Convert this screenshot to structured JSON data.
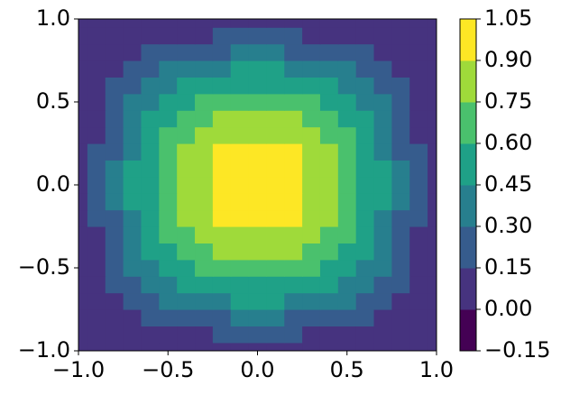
{
  "chart_data": {
    "type": "contourf",
    "x": [
      -1,
      -0.9,
      -0.8,
      -0.7,
      -0.6,
      -0.5,
      -0.4,
      -0.3,
      -0.2,
      -0.1,
      0,
      0.1,
      0.2,
      0.3,
      0.4,
      0.5,
      0.6,
      0.7,
      0.8,
      0.9,
      1
    ],
    "y": [
      -1,
      -0.9,
      -0.8,
      -0.7,
      -0.6,
      -0.5,
      -0.4,
      -0.3,
      -0.2,
      -0.1,
      0,
      0.1,
      0.2,
      0.3,
      0.4,
      0.5,
      0.6,
      0.7,
      0.8,
      0.9,
      1
    ],
    "z": [
      [
        0,
        0,
        0,
        0,
        0,
        0,
        0,
        0,
        0,
        0,
        0,
        0,
        0,
        0,
        0,
        0,
        0,
        0,
        0,
        0,
        0
      ],
      [
        0,
        0.02,
        0.05,
        0.07,
        0.09,
        0.11,
        0.13,
        0.14,
        0.15,
        0.15,
        0.16,
        0.15,
        0.15,
        0.14,
        0.13,
        0.11,
        0.09,
        0.07,
        0.05,
        0.02,
        0
      ],
      [
        0,
        0.05,
        0.1,
        0.14,
        0.18,
        0.22,
        0.25,
        0.28,
        0.29,
        0.31,
        0.31,
        0.31,
        0.29,
        0.28,
        0.25,
        0.22,
        0.18,
        0.14,
        0.1,
        0.05,
        0
      ],
      [
        0,
        0.07,
        0.14,
        0.21,
        0.27,
        0.32,
        0.37,
        0.4,
        0.43,
        0.45,
        0.45,
        0.45,
        0.43,
        0.4,
        0.37,
        0.32,
        0.27,
        0.21,
        0.14,
        0.07,
        0
      ],
      [
        0,
        0.09,
        0.18,
        0.27,
        0.35,
        0.42,
        0.48,
        0.52,
        0.56,
        0.58,
        0.59,
        0.58,
        0.56,
        0.52,
        0.48,
        0.42,
        0.35,
        0.27,
        0.18,
        0.09,
        0
      ],
      [
        0,
        0.11,
        0.22,
        0.32,
        0.42,
        0.5,
        0.57,
        0.63,
        0.67,
        0.7,
        0.71,
        0.7,
        0.67,
        0.63,
        0.57,
        0.5,
        0.42,
        0.32,
        0.22,
        0.11,
        0
      ],
      [
        0,
        0.13,
        0.25,
        0.37,
        0.48,
        0.57,
        0.65,
        0.72,
        0.77,
        0.8,
        0.81,
        0.8,
        0.77,
        0.72,
        0.65,
        0.57,
        0.48,
        0.37,
        0.25,
        0.13,
        0
      ],
      [
        0,
        0.14,
        0.28,
        0.4,
        0.52,
        0.63,
        0.72,
        0.79,
        0.85,
        0.88,
        0.89,
        0.88,
        0.85,
        0.79,
        0.72,
        0.63,
        0.52,
        0.4,
        0.28,
        0.14,
        0
      ],
      [
        0,
        0.15,
        0.29,
        0.43,
        0.56,
        0.67,
        0.77,
        0.85,
        0.9,
        0.94,
        0.95,
        0.94,
        0.9,
        0.85,
        0.77,
        0.67,
        0.56,
        0.43,
        0.29,
        0.15,
        0
      ],
      [
        0,
        0.15,
        0.31,
        0.45,
        0.58,
        0.7,
        0.8,
        0.88,
        0.94,
        0.98,
        0.99,
        0.98,
        0.94,
        0.88,
        0.8,
        0.7,
        0.58,
        0.45,
        0.31,
        0.15,
        0
      ],
      [
        0,
        0.16,
        0.31,
        0.45,
        0.59,
        0.71,
        0.81,
        0.89,
        0.95,
        0.99,
        1,
        0.99,
        0.95,
        0.89,
        0.81,
        0.71,
        0.59,
        0.45,
        0.31,
        0.16,
        0
      ],
      [
        0,
        0.15,
        0.31,
        0.45,
        0.58,
        0.7,
        0.8,
        0.88,
        0.94,
        0.98,
        0.99,
        0.98,
        0.94,
        0.88,
        0.8,
        0.7,
        0.58,
        0.45,
        0.31,
        0.15,
        0
      ],
      [
        0,
        0.15,
        0.29,
        0.43,
        0.56,
        0.67,
        0.77,
        0.85,
        0.9,
        0.94,
        0.95,
        0.94,
        0.9,
        0.85,
        0.77,
        0.67,
        0.56,
        0.43,
        0.29,
        0.15,
        0
      ],
      [
        0,
        0.14,
        0.28,
        0.4,
        0.52,
        0.63,
        0.72,
        0.79,
        0.85,
        0.88,
        0.89,
        0.88,
        0.85,
        0.79,
        0.72,
        0.63,
        0.52,
        0.4,
        0.28,
        0.14,
        0
      ],
      [
        0,
        0.13,
        0.25,
        0.37,
        0.48,
        0.57,
        0.65,
        0.72,
        0.77,
        0.8,
        0.81,
        0.8,
        0.77,
        0.72,
        0.65,
        0.57,
        0.48,
        0.37,
        0.25,
        0.13,
        0
      ],
      [
        0,
        0.11,
        0.22,
        0.32,
        0.42,
        0.5,
        0.57,
        0.63,
        0.67,
        0.7,
        0.71,
        0.7,
        0.67,
        0.63,
        0.57,
        0.5,
        0.42,
        0.32,
        0.22,
        0.11,
        0
      ],
      [
        0,
        0.09,
        0.18,
        0.27,
        0.35,
        0.42,
        0.48,
        0.52,
        0.56,
        0.58,
        0.59,
        0.58,
        0.56,
        0.52,
        0.48,
        0.42,
        0.35,
        0.27,
        0.18,
        0.09,
        0
      ],
      [
        0,
        0.07,
        0.14,
        0.21,
        0.27,
        0.32,
        0.37,
        0.4,
        0.43,
        0.45,
        0.45,
        0.45,
        0.43,
        0.4,
        0.37,
        0.32,
        0.27,
        0.21,
        0.14,
        0.07,
        0
      ],
      [
        0,
        0.05,
        0.1,
        0.14,
        0.18,
        0.22,
        0.25,
        0.28,
        0.29,
        0.31,
        0.31,
        0.31,
        0.29,
        0.28,
        0.25,
        0.22,
        0.18,
        0.14,
        0.1,
        0.05,
        0
      ],
      [
        0,
        0.02,
        0.05,
        0.07,
        0.09,
        0.11,
        0.13,
        0.14,
        0.15,
        0.15,
        0.16,
        0.15,
        0.15,
        0.14,
        0.13,
        0.11,
        0.09,
        0.07,
        0.05,
        0.02,
        0
      ],
      [
        0,
        0,
        0,
        0,
        0,
        0,
        0,
        0,
        0,
        0,
        0,
        0,
        0,
        0,
        0,
        0,
        0,
        0,
        0,
        0,
        0
      ]
    ],
    "xlim": [
      -1,
      1
    ],
    "ylim": [
      -1,
      1
    ],
    "xticks": [
      {
        "value": -1,
        "label": "−1.0"
      },
      {
        "value": -0.5,
        "label": "−0.5"
      },
      {
        "value": 0,
        "label": "0.0"
      },
      0.5,
      {
        "value": 1,
        "label": "1.0"
      }
    ],
    "yticks": [
      {
        "value": -1,
        "label": "−1.0"
      },
      {
        "value": -0.5,
        "label": "−0.5"
      },
      {
        "value": 0,
        "label": "0.0"
      },
      0.5,
      {
        "value": 1,
        "label": "1.0"
      }
    ],
    "levels": [
      {
        "value": -0.15,
        "label": "−0.15"
      },
      {
        "value": 0,
        "label": "0.00"
      },
      0.15,
      {
        "value": 0.3,
        "label": "0.30"
      },
      0.45,
      {
        "value": 0.6,
        "label": "0.60"
      },
      0.75,
      {
        "value": 0.9,
        "label": "0.90"
      },
      1.05
    ],
    "colors": [
      "#440154",
      "#46337f",
      "#365c8d",
      "#277f8e",
      "#1fa187",
      "#4ac16d",
      "#9fda3a",
      "#fde725"
    ]
  }
}
